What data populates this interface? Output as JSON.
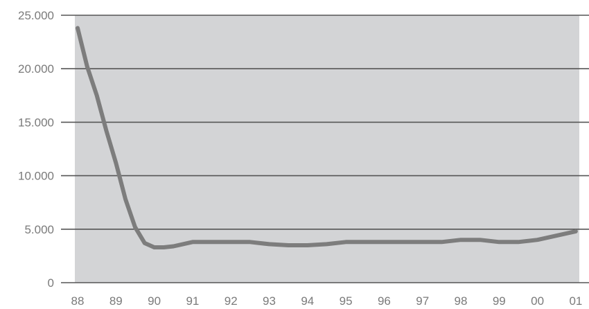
{
  "chart_data": {
    "type": "line",
    "title": "",
    "xlabel": "",
    "ylabel": "",
    "x_categories": [
      "88",
      "89",
      "90",
      "91",
      "92",
      "93",
      "94",
      "95",
      "96",
      "97",
      "98",
      "99",
      "00",
      "01"
    ],
    "y_ticks": [
      {
        "value": 0,
        "label": "0"
      },
      {
        "value": 5000,
        "label": "5.000"
      },
      {
        "value": 10000,
        "label": "10.000"
      },
      {
        "value": 15000,
        "label": "15.000"
      },
      {
        "value": 20000,
        "label": "20.000"
      },
      {
        "value": 25000,
        "label": "25.000"
      }
    ],
    "ylim": [
      0,
      25000
    ],
    "grid": "horizontal",
    "legend": "none",
    "colors": {
      "plot_background": "#d3d4d6",
      "gridline": "#555555",
      "line": "#7d7d7d",
      "tick_text": "#7a7a7a"
    },
    "series": [
      {
        "x": [
          88,
          88.25,
          88.5,
          88.75,
          89,
          89.25,
          89.5,
          89.75,
          90,
          90.25,
          90.5,
          91,
          91.5,
          92,
          92.5,
          93,
          93.5,
          94,
          94.5,
          95,
          95.5,
          96,
          96.5,
          97,
          97.5,
          98,
          98.5,
          99,
          99.5,
          100,
          100.5,
          101
        ],
        "values": [
          23800,
          20200,
          17500,
          14200,
          11200,
          7800,
          5200,
          3700,
          3300,
          3300,
          3400,
          3800,
          3800,
          3800,
          3800,
          3600,
          3500,
          3500,
          3600,
          3800,
          3800,
          3800,
          3800,
          3800,
          3800,
          4000,
          4000,
          3800,
          3800,
          4000,
          4400,
          4800
        ]
      }
    ]
  }
}
